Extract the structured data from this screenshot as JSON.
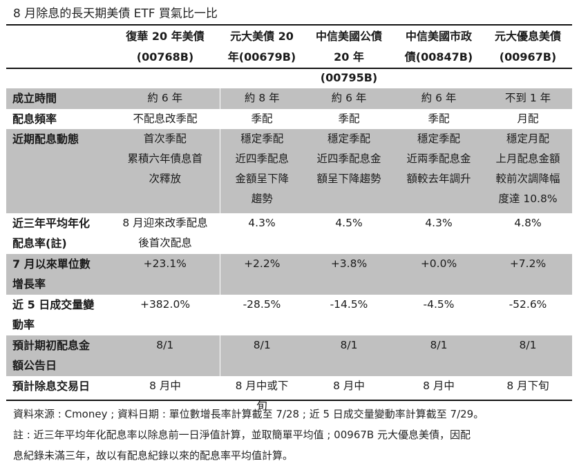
{
  "title": "8 月除息的長天期美債 ETF 買氣比一比",
  "table": {
    "columns": [
      {
        "lines": [
          "復華 20 年美債",
          "(00768B)"
        ]
      },
      {
        "lines": [
          "元大美債 20",
          "年(00679B)"
        ]
      },
      {
        "lines": [
          "中信美國公債",
          "20 年(00795B)"
        ]
      },
      {
        "lines": [
          "中信美國市政",
          "債(00847B)"
        ]
      },
      {
        "lines": [
          "元大優息美債",
          "(00967B)"
        ]
      }
    ],
    "rows": [
      {
        "label": [
          "成立時間"
        ],
        "cells": [
          [
            "約 6 年"
          ],
          [
            "約 8 年"
          ],
          [
            "約 6 年"
          ],
          [
            "約 6 年"
          ],
          [
            "不到 1 年"
          ]
        ]
      },
      {
        "label": [
          "配息頻率"
        ],
        "cells": [
          [
            "不配息改季配"
          ],
          [
            "季配"
          ],
          [
            "季配"
          ],
          [
            "季配"
          ],
          [
            "月配"
          ]
        ]
      },
      {
        "label": [
          "近期配息動態"
        ],
        "cells": [
          [
            "首次季配",
            "累積六年債息首",
            "次釋放"
          ],
          [
            "穩定季配",
            "近四季配息",
            "金額呈下降",
            "趨勢"
          ],
          [
            "穩定季配",
            "近四季配息金",
            "額呈下降趨勢"
          ],
          [
            "穩定季配",
            "近兩季配息金",
            "額較去年調升"
          ],
          [
            "穩定月配",
            "上月配息金額",
            "較前次調降幅",
            "度達 10.8%"
          ]
        ]
      },
      {
        "label": [
          "近三年平均年化",
          "配息率(註)"
        ],
        "cells": [
          [
            "8 月迎來改季配息",
            "後首次配息"
          ],
          [
            "4.3%"
          ],
          [
            "4.5%"
          ],
          [
            "4.3%"
          ],
          [
            "4.8%"
          ]
        ]
      },
      {
        "label": [
          "7 月以來單位數",
          "增長率"
        ],
        "cells": [
          [
            "+23.1%"
          ],
          [
            "+2.2%"
          ],
          [
            "+3.8%"
          ],
          [
            "+0.0%"
          ],
          [
            "+7.2%"
          ]
        ]
      },
      {
        "label": [
          "近 5 日成交量變",
          "動率"
        ],
        "cells": [
          [
            "+382.0%"
          ],
          [
            "-28.5%"
          ],
          [
            "-14.5%"
          ],
          [
            "-4.5%"
          ],
          [
            "-52.6%"
          ]
        ]
      },
      {
        "label": [
          "預計期初配息金",
          "額公告日"
        ],
        "cells": [
          [
            "8/1"
          ],
          [
            "8/1"
          ],
          [
            "8/1"
          ],
          [
            "8/1"
          ],
          [
            "8/1"
          ]
        ]
      },
      {
        "label": [
          "預計除息交易日"
        ],
        "cells": [
          [
            "8 月中"
          ],
          [
            "8 月中或下",
            "旬"
          ],
          [
            "8 月中"
          ],
          [
            "8 月中"
          ],
          [
            "8 月下旬"
          ]
        ]
      }
    ]
  },
  "notes": [
    "資料來源 : Cmoney ; 資料日期 : 單位數增長率計算截至 7/28 ; 近 5 日成交量變動率計算截至 7/29。",
    "註 : 近三年平均年化配息率以除息前一日淨值計算，並取簡單平均值 ; 00967B 元大優息美債，因配",
    "息紀錄未滿三年，故以有配息紀錄以來的配息率平均值計算。"
  ],
  "colors": {
    "row_gray": "#c0c0c0",
    "row_white": "#ffffff",
    "rule": "#111111",
    "text": "#1a1a1a"
  }
}
